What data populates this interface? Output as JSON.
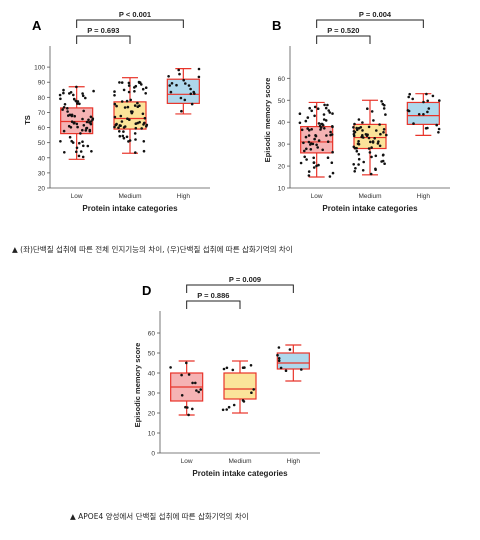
{
  "captions": {
    "top": "▲ (좌)단백질 섭취에 따른 전체 인지기능의 차이, (우)단백질 섭취에 따른 삽화기억의 차이",
    "bottom": "▲ APOE4 양성에서 단백질 섭취에 따른 삽화기억의 차이"
  },
  "colors": {
    "box_edge": "#e8342a",
    "low_fill": "#f5b3b4",
    "medium_fill": "#fbe49a",
    "high_fill": "#aed8ec",
    "dot": "#111111",
    "axis": "#555555"
  },
  "chart_data": [
    {
      "panel_label": "A",
      "type": "box",
      "categories": [
        "Low",
        "Medium",
        "High"
      ],
      "xlabel": "Protein intake categories",
      "ylabel": "TS",
      "ylim": [
        20,
        110
      ],
      "yticks": [
        20,
        30,
        40,
        50,
        60,
        70,
        80,
        90,
        100
      ],
      "boxes": [
        {
          "category": "Low",
          "whisker_low": 39,
          "q1": 56,
          "median": 64,
          "q3": 73,
          "whisker_high": 87
        },
        {
          "category": "Medium",
          "whisker_low": 43,
          "q1": 59,
          "median": 66,
          "q3": 77,
          "whisker_high": 93
        },
        {
          "category": "High",
          "whisker_low": 69,
          "q1": 76,
          "median": 82,
          "q3": 92,
          "whisker_high": 99
        }
      ],
      "comparisons": [
        {
          "from": "Low",
          "to": "Medium",
          "label": "P = 0.693"
        },
        {
          "from": "Low",
          "to": "High",
          "label": "P < 0.001"
        }
      ]
    },
    {
      "panel_label": "B",
      "type": "box",
      "categories": [
        "Low",
        "Medium",
        "High"
      ],
      "xlabel": "Protein intake categories",
      "ylabel": "Episodic memory score",
      "ylim": [
        10,
        72
      ],
      "yticks": [
        10,
        20,
        30,
        40,
        50,
        60
      ],
      "boxes": [
        {
          "category": "Low",
          "whisker_low": 15,
          "q1": 26,
          "median": 31,
          "q3": 38,
          "whisker_high": 49
        },
        {
          "category": "Medium",
          "whisker_low": 16,
          "q1": 28,
          "median": 33,
          "q3": 39,
          "whisker_high": 50
        },
        {
          "category": "High",
          "whisker_low": 34,
          "q1": 39,
          "median": 43,
          "q3": 49,
          "whisker_high": 53
        }
      ],
      "comparisons": [
        {
          "from": "Low",
          "to": "Medium",
          "label": "P = 0.520"
        },
        {
          "from": "Low",
          "to": "High",
          "label": "P = 0.004"
        }
      ]
    },
    {
      "panel_label": "D",
      "type": "box",
      "categories": [
        "Low",
        "Medium",
        "High"
      ],
      "xlabel": "Protein intake categories",
      "ylabel": "Episodic memory score",
      "ylim": [
        0,
        68
      ],
      "yticks": [
        0,
        10,
        20,
        30,
        40,
        50,
        60
      ],
      "boxes": [
        {
          "category": "Low",
          "whisker_low": 19,
          "q1": 26,
          "median": 33,
          "q3": 40,
          "whisker_high": 46
        },
        {
          "category": "Medium",
          "whisker_low": 20,
          "q1": 27,
          "median": 32,
          "q3": 40,
          "whisker_high": 46
        },
        {
          "category": "High",
          "whisker_low": 36,
          "q1": 42,
          "median": 45,
          "q3": 50,
          "whisker_high": 54
        }
      ],
      "comparisons": [
        {
          "from": "Low",
          "to": "Medium",
          "label": "P = 0.886"
        },
        {
          "from": "Low",
          "to": "High",
          "label": "P = 0.009"
        }
      ]
    }
  ]
}
